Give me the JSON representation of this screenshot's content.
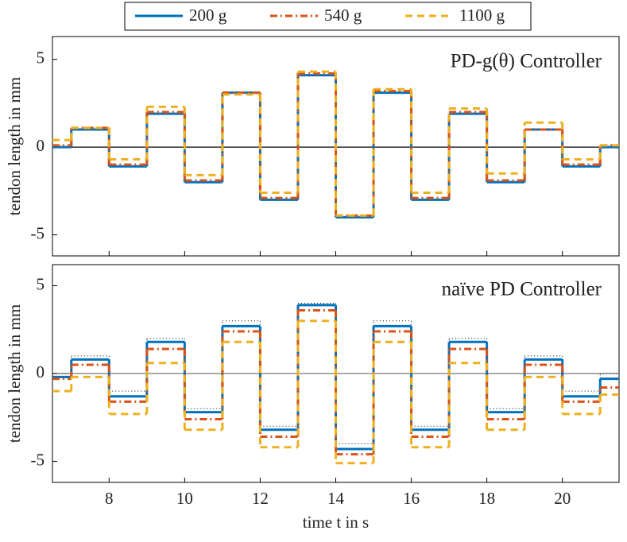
{
  "chart_data": [
    {
      "type": "step",
      "annotation": "PD-g(θ) Controller",
      "ylabel": "tendon length in mm",
      "x": [
        6.5,
        7,
        8,
        9,
        10,
        11,
        12,
        13,
        14,
        15,
        16,
        17,
        18,
        19,
        20,
        21
      ],
      "xlim": [
        6.5,
        21.5
      ],
      "xticks": [
        8,
        10,
        12,
        14,
        16,
        18,
        20
      ],
      "ylim": [
        -6.2,
        6.3
      ],
      "yticks": [
        -5,
        0,
        5
      ],
      "zero_line_color": "#000000",
      "series": [
        {
          "name": "200 g",
          "color": "#0072bd",
          "dash": "solid",
          "values": [
            0,
            1,
            -1.1,
            1.9,
            -2,
            3.1,
            -3,
            4.1,
            -4,
            3.1,
            -3,
            1.9,
            -2,
            1,
            -1.1,
            0
          ]
        },
        {
          "name": "540 g",
          "color": "#d95319",
          "dash": "dashdot",
          "values": [
            0.1,
            1.1,
            -1,
            2,
            -1.9,
            3.1,
            -2.9,
            4.2,
            -3.9,
            3.2,
            -2.9,
            2,
            -1.9,
            1,
            -1,
            0.1
          ]
        },
        {
          "name": "1100 g",
          "color": "#edb120",
          "dash": "dashed",
          "values": [
            0.4,
            1.1,
            -0.7,
            2.3,
            -1.6,
            3,
            -2.6,
            4.3,
            -3.9,
            3.3,
            -2.6,
            2.2,
            -1.5,
            1.4,
            -0.7,
            0.1
          ]
        }
      ]
    },
    {
      "type": "step",
      "annotation": "naïve PD Controller",
      "ylabel": "tendon length in mm",
      "xlabel": "time t in s",
      "x": [
        6.5,
        7,
        8,
        9,
        10,
        11,
        12,
        13,
        14,
        15,
        16,
        17,
        18,
        19,
        20,
        21
      ],
      "xlim": [
        6.5,
        21.5
      ],
      "xticks": [
        8,
        10,
        12,
        14,
        16,
        18,
        20
      ],
      "ylim": [
        -6.2,
        6.2
      ],
      "yticks": [
        -5,
        0,
        5
      ],
      "zero_line_color": "#777777",
      "reference": {
        "color": "#000000",
        "values": [
          0,
          1,
          -1,
          2,
          -2,
          3,
          -3,
          4,
          -4,
          3,
          -3,
          2,
          -2,
          1,
          -1,
          0
        ]
      },
      "series": [
        {
          "name": "200 g",
          "color": "#0072bd",
          "dash": "solid",
          "values": [
            -0.2,
            0.8,
            -1.3,
            1.8,
            -2.2,
            2.7,
            -3.2,
            3.9,
            -4.3,
            2.7,
            -3.2,
            1.8,
            -2.2,
            0.8,
            -1.3,
            -0.3
          ]
        },
        {
          "name": "540 g",
          "color": "#d95319",
          "dash": "dashdot",
          "values": [
            -0.3,
            0.5,
            -1.6,
            1.4,
            -2.6,
            2.4,
            -3.6,
            3.6,
            -4.6,
            2.4,
            -3.6,
            1.4,
            -2.6,
            0.5,
            -1.6,
            -0.8
          ]
        },
        {
          "name": "1100 g",
          "color": "#edb120",
          "dash": "dashed",
          "values": [
            -1,
            -0.2,
            -2.3,
            0.6,
            -3.2,
            1.8,
            -4.2,
            3,
            -5.1,
            1.8,
            -4.2,
            0.6,
            -3.2,
            -0.2,
            -2.3,
            -1.2
          ]
        }
      ]
    }
  ]
}
